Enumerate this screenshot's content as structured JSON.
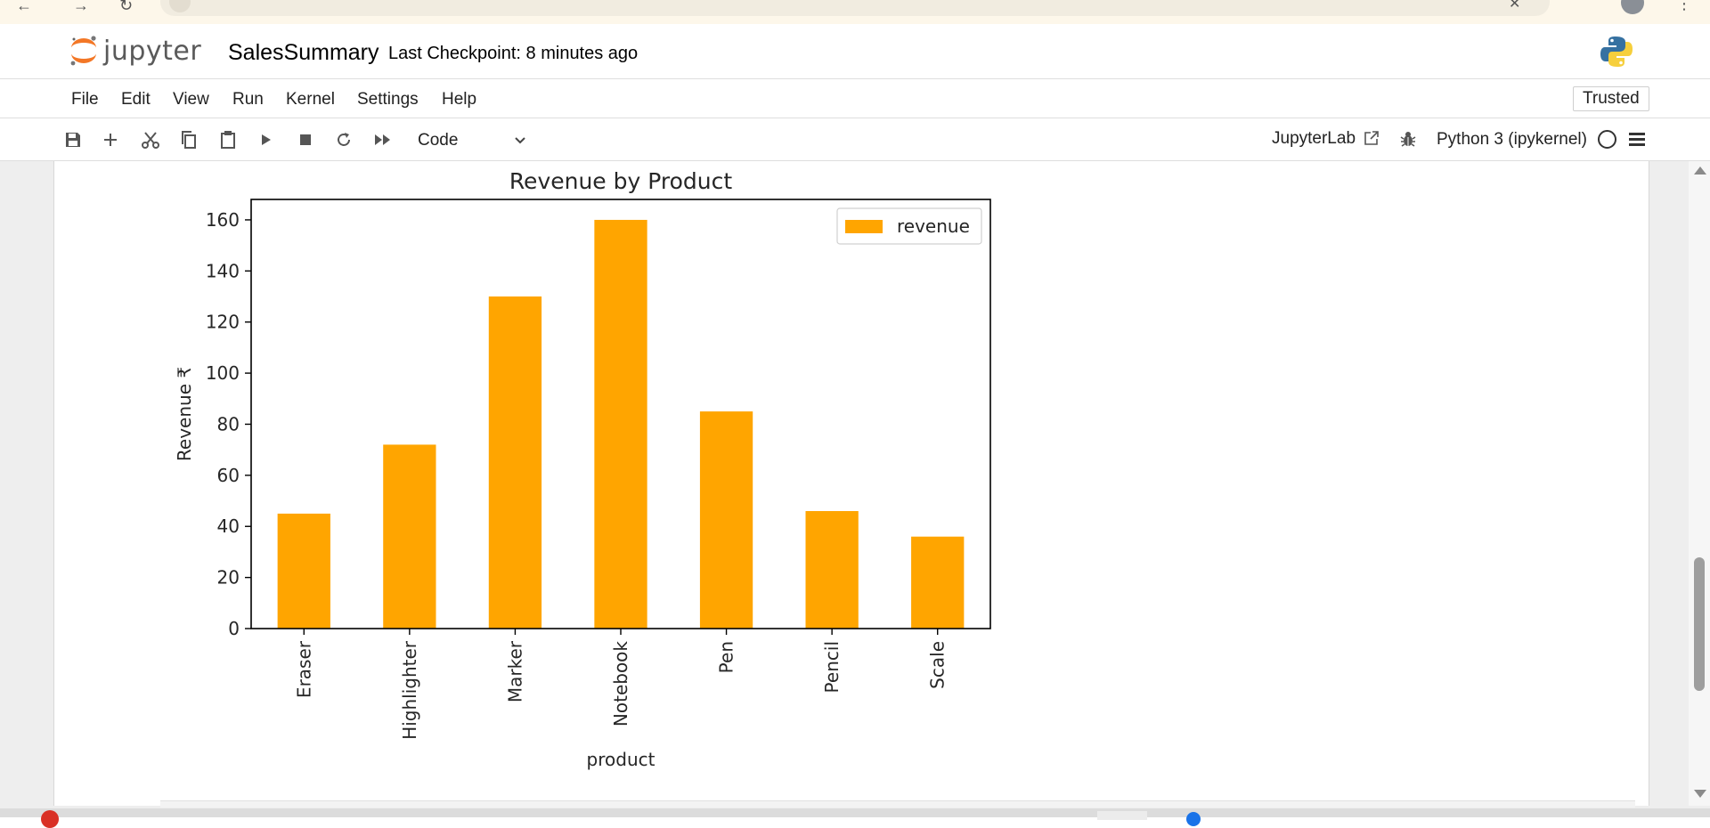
{
  "header": {
    "logo_text": "jupyter",
    "notebook_title": "SalesSummary",
    "checkpoint": "Last Checkpoint: 8 minutes ago"
  },
  "menu": {
    "items": [
      "File",
      "Edit",
      "View",
      "Run",
      "Kernel",
      "Settings",
      "Help"
    ],
    "trusted_label": "Trusted"
  },
  "toolbar": {
    "icons": [
      "save-icon",
      "add-cell-icon",
      "cut-icon",
      "copy-icon",
      "paste-icon",
      "run-icon",
      "stop-icon",
      "restart-icon",
      "fast-forward-icon"
    ],
    "cell_type": "Code",
    "jupyterlab_label": "JupyterLab",
    "kernel_name": "Python 3 (ipykernel)"
  },
  "colors": {
    "bar": "#ffa500",
    "jupyter_orange": "#f37726"
  },
  "chart_data": {
    "type": "bar",
    "title": "Revenue by Product",
    "xlabel": "product",
    "ylabel": "Revenue ₹",
    "categories": [
      "Eraser",
      "Highlighter",
      "Marker",
      "Notebook",
      "Pen",
      "Pencil",
      "Scale"
    ],
    "series": [
      {
        "name": "revenue",
        "values": [
          45,
          72,
          130,
          160,
          85,
          46,
          36
        ]
      }
    ],
    "ylim": [
      0,
      168
    ],
    "yticks": [
      0,
      20,
      40,
      60,
      80,
      100,
      120,
      140,
      160
    ],
    "legend": "top-right",
    "grid": false
  }
}
